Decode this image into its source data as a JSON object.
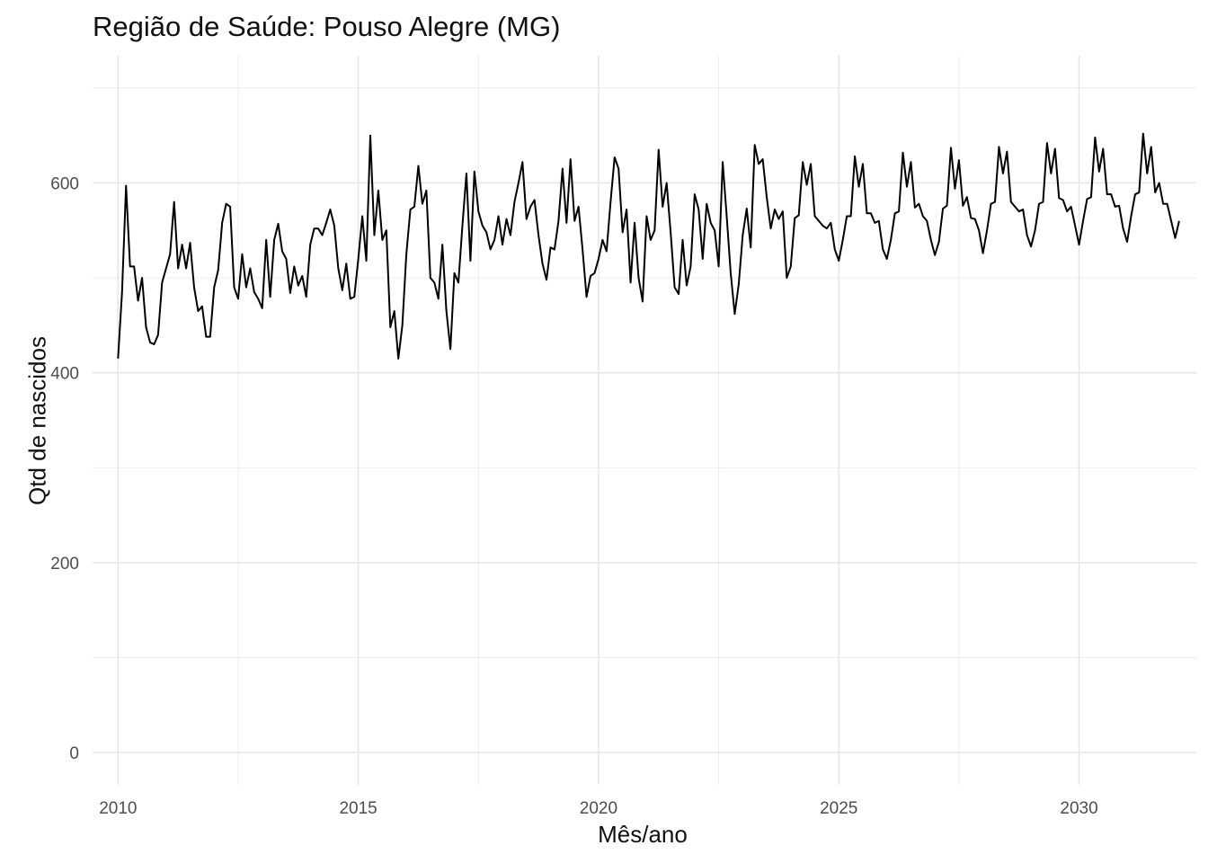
{
  "chart_data": {
    "type": "line",
    "title": "Região de Saúde: Pouso Alegre (MG)",
    "xlabel": "Mês/ano",
    "ylabel": "Qtd de nascidos",
    "xlim": [
      2009.47,
      2032.44
    ],
    "ylim": [
      -34,
      734
    ],
    "x_ticks": [
      2010,
      2015,
      2020,
      2025,
      2030
    ],
    "x_tick_labels": [
      "2010",
      "2015",
      "2020",
      "2025",
      "2030"
    ],
    "y_ticks": [
      0,
      200,
      400,
      600
    ],
    "y_tick_labels": [
      "0",
      "200",
      "400",
      "600"
    ],
    "grid": true,
    "legend": "none",
    "line_color": "#000000",
    "series": [
      {
        "x_start": 2010.0,
        "x_step_months": 1,
        "values": [
          415,
          485,
          597,
          512,
          512,
          476,
          500,
          448,
          432,
          430,
          440,
          495,
          510,
          525,
          580,
          510,
          535,
          510,
          537,
          490,
          465,
          470,
          438,
          438,
          490,
          508,
          558,
          578,
          575,
          490,
          478,
          525,
          490,
          510,
          485,
          478,
          468,
          540,
          480,
          540,
          557,
          528,
          520,
          484,
          512,
          492,
          502,
          480,
          535,
          552,
          552,
          545,
          558,
          572,
          555,
          510,
          487,
          515,
          478,
          480,
          520,
          565,
          518,
          650,
          545,
          592,
          540,
          550,
          448,
          465,
          415,
          450,
          525,
          572,
          575,
          618,
          578,
          592,
          500,
          495,
          478,
          535,
          465,
          425,
          505,
          495,
          555,
          610,
          518,
          612,
          570,
          555,
          548,
          530,
          540,
          565,
          535,
          562,
          545,
          580,
          600,
          622,
          562,
          575,
          582,
          545,
          515,
          498,
          532,
          530,
          560,
          615,
          558,
          625,
          560,
          575,
          530,
          480,
          502,
          505,
          520,
          540,
          528,
          580,
          627,
          615,
          548,
          572,
          495,
          558,
          500,
          475,
          565,
          540,
          550,
          635,
          575,
          600,
          548,
          490,
          483,
          540,
          492,
          512,
          588,
          572,
          520,
          578,
          558,
          550,
          512,
          622,
          565,
          505,
          462,
          493,
          545,
          573,
          532,
          640,
          620,
          625,
          585,
          552,
          572,
          562,
          570,
          500,
          512,
          563,
          566,
          622,
          598,
          620,
          565,
          560,
          555,
          552,
          558,
          530,
          518,
          540,
          565,
          565,
          628,
          596,
          620,
          568,
          568,
          558,
          560,
          530,
          520,
          540,
          568,
          570,
          632,
          596,
          622,
          574,
          578,
          565,
          560,
          540,
          524,
          538,
          573,
          576,
          637,
          594,
          624,
          576,
          585,
          563,
          562,
          550,
          526,
          550,
          578,
          580,
          638,
          610,
          633,
          580,
          575,
          570,
          572,
          545,
          533,
          550,
          578,
          580,
          642,
          610,
          636,
          584,
          582,
          570,
          575,
          555,
          535,
          560,
          583,
          585,
          648,
          612,
          636,
          588,
          588,
          575,
          576,
          552,
          538,
          565,
          588,
          590,
          652,
          610,
          638,
          590,
          600,
          578,
          578,
          560,
          542,
          560
        ]
      }
    ]
  }
}
